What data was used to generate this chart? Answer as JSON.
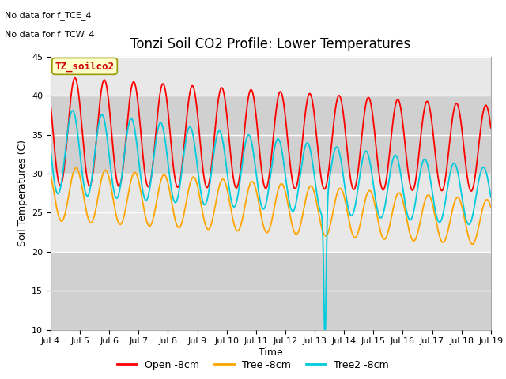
{
  "title": "Tonzi Soil CO2 Profile: Lower Temperatures",
  "ylabel": "Soil Temperatures (C)",
  "xlabel": "Time",
  "subtitle_lines": [
    "No data for f_TCE_4",
    "No data for f_TCW_4"
  ],
  "watermark": "TZ_soilco2",
  "xlim_days": [
    4,
    19
  ],
  "ylim": [
    10,
    45
  ],
  "yticks": [
    10,
    15,
    20,
    25,
    30,
    35,
    40,
    45
  ],
  "xtick_labels": [
    "Jul 4",
    "Jul 5",
    "Jul 6",
    "Jul 7",
    "Jul 8",
    "Jul 9",
    "Jul 10",
    "Jul 11",
    "Jul 12",
    "Jul 13",
    "Jul 14",
    "Jul 15",
    "Jul 16",
    "Jul 17",
    "Jul 18",
    "Jul 19"
  ],
  "colors": {
    "open": "#ff0000",
    "tree": "#ffa500",
    "tree2": "#00ccdd"
  },
  "legend_labels": [
    "Open -8cm",
    "Tree -8cm",
    "Tree2 -8cm"
  ],
  "bg_color": "#ffffff",
  "plot_bg_light": "#e8e8e8",
  "plot_bg_dark": "#d0d0d0",
  "grid_color": "#ffffff",
  "band_ranges": [
    [
      10,
      20
    ],
    [
      30,
      40
    ]
  ],
  "title_fontsize": 12,
  "axis_fontsize": 9,
  "tick_fontsize": 8,
  "legend_fontsize": 9,
  "watermark_fontsize": 9
}
